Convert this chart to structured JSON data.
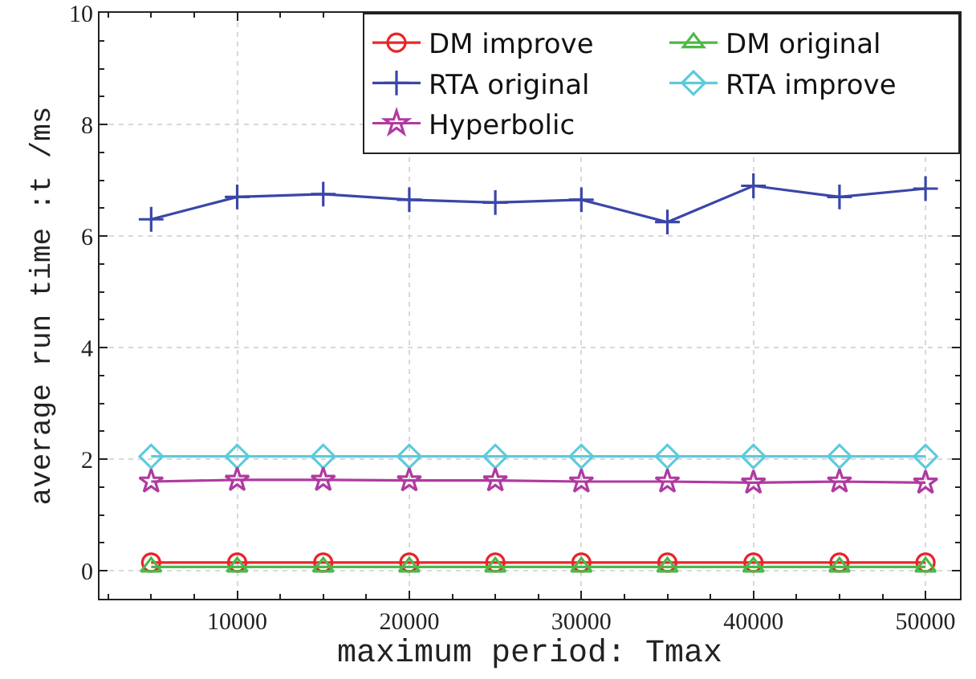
{
  "chart_data": {
    "type": "line",
    "xlabel": "maximum period: Tmax",
    "ylabel": "average run time :t /ms",
    "x": [
      5000,
      10000,
      15000,
      20000,
      25000,
      30000,
      35000,
      40000,
      45000,
      50000
    ],
    "xlim": [
      2000,
      52000
    ],
    "xticks": [
      10000,
      20000,
      30000,
      40000,
      50000
    ],
    "ylim": [
      -0.5,
      10
    ],
    "yticks": [
      0,
      2,
      4,
      6,
      8,
      10
    ],
    "grid": true,
    "legend": "top right",
    "line_style": "solid",
    "series": [
      {
        "name": "DM improve",
        "color": "#e8262a",
        "marker": "circle",
        "values": [
          0.15,
          0.15,
          0.15,
          0.15,
          0.15,
          0.15,
          0.15,
          0.15,
          0.15,
          0.15
        ]
      },
      {
        "name": "DM original",
        "color": "#4cb848",
        "marker": "triangle",
        "values": [
          0.07,
          0.07,
          0.07,
          0.07,
          0.07,
          0.07,
          0.07,
          0.07,
          0.07,
          0.07
        ]
      },
      {
        "name": "RTA original",
        "color": "#3a46a8",
        "marker": "cross",
        "values": [
          6.3,
          6.7,
          6.75,
          6.65,
          6.6,
          6.65,
          6.25,
          6.9,
          6.7,
          6.85
        ]
      },
      {
        "name": "RTA improve",
        "color": "#5ccbdc",
        "marker": "diamond",
        "values": [
          2.05,
          2.05,
          2.05,
          2.05,
          2.05,
          2.05,
          2.05,
          2.05,
          2.05,
          2.05
        ]
      },
      {
        "name": "Hyperbolic",
        "color": "#b03aa0",
        "marker": "star",
        "values": [
          1.6,
          1.63,
          1.63,
          1.62,
          1.62,
          1.6,
          1.6,
          1.58,
          1.6,
          1.58
        ]
      }
    ]
  }
}
